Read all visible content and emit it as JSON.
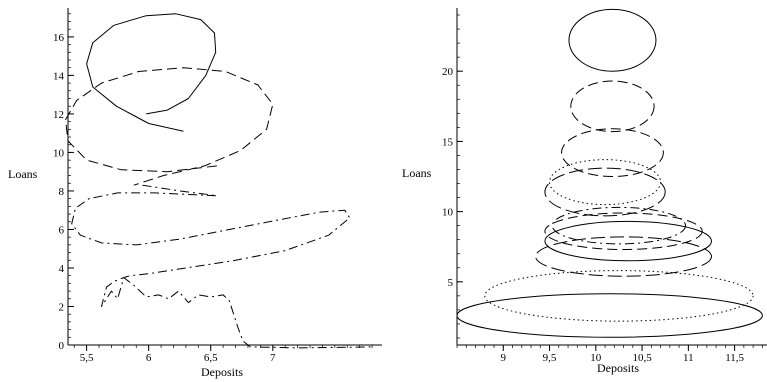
{
  "chart_data": [
    {
      "type": "line",
      "xlabel": "Deposits",
      "ylabel": "Loans",
      "xlim": [
        5.35,
        7.88
      ],
      "ylim": [
        0,
        17.5
      ],
      "xticks": [
        "5,5",
        "6",
        "6,5",
        "7"
      ],
      "xtick_values": [
        5.5,
        6,
        6.5,
        7
      ],
      "yticks": [
        "0",
        "2",
        "4",
        "6",
        "8",
        "10",
        "12",
        "14",
        "16"
      ],
      "ytick_values": [
        0,
        2,
        4,
        6,
        8,
        10,
        12,
        14,
        16
      ],
      "grid": false,
      "series": [
        {
          "style": "solid",
          "x": [
            6.28,
            6.0,
            5.74,
            5.55,
            5.5,
            5.55,
            5.72,
            5.98,
            6.22,
            6.42,
            6.53,
            6.54,
            6.46,
            6.32,
            6.15,
            5.98
          ],
          "y": [
            11.1,
            11.5,
            12.4,
            13.4,
            14.6,
            15.7,
            16.6,
            17.1,
            17.2,
            16.9,
            16.2,
            15.2,
            14.0,
            12.8,
            12.2,
            12.0
          ]
        },
        {
          "style": "dashed",
          "x": [
            6.55,
            6.15,
            5.78,
            5.5,
            5.35,
            5.33,
            5.42,
            5.62,
            5.92,
            6.28,
            6.62,
            6.88,
            7.0,
            6.95,
            6.74,
            6.45,
            6.12,
            5.88
          ],
          "y": [
            9.3,
            9.0,
            9.1,
            9.6,
            10.6,
            11.7,
            12.7,
            13.6,
            14.2,
            14.4,
            14.2,
            13.5,
            12.5,
            11.2,
            10.1,
            9.3,
            8.8,
            8.3
          ]
        },
        {
          "style": "dash-dot",
          "x": [
            5.95,
            6.25,
            6.5,
            6.55,
            6.38,
            6.05,
            5.75,
            5.52,
            5.41,
            5.38,
            5.45,
            5.62,
            5.9,
            6.25,
            6.65,
            7.05,
            7.38,
            7.58,
            7.62,
            7.45,
            7.1,
            6.7,
            6.3,
            6.0,
            5.85,
            5.8,
            5.76,
            5.72,
            5.66,
            5.62,
            5.7,
            5.75,
            5.8,
            5.88,
            5.98,
            6.08,
            6.16,
            6.24,
            6.32,
            6.4,
            6.5,
            6.6,
            6.65,
            6.72,
            6.76,
            6.82,
            7.2,
            7.8
          ],
          "y": [
            8.3,
            8.0,
            7.8,
            7.75,
            7.8,
            7.9,
            7.9,
            7.6,
            7.1,
            6.3,
            5.7,
            5.3,
            5.2,
            5.5,
            6.0,
            6.5,
            6.9,
            7.0,
            6.6,
            5.7,
            4.9,
            4.4,
            4.0,
            3.7,
            3.6,
            3.5,
            3.4,
            3.3,
            3.0,
            2.0,
            2.8,
            2.4,
            3.5,
            3.1,
            2.5,
            2.6,
            2.4,
            2.8,
            2.2,
            2.6,
            2.5,
            2.6,
            2.3,
            0.9,
            0.2,
            -0.1,
            -0.15,
            -0.1
          ]
        }
      ]
    },
    {
      "type": "line",
      "xlabel": "Deposits",
      "ylabel": "Loans",
      "xlim": [
        8.5,
        11.85
      ],
      "ylim": [
        0.5,
        24.5
      ],
      "xticks": [
        "9",
        "9,5",
        "10",
        "10,5",
        "11",
        "11,5"
      ],
      "xtick_values": [
        9,
        9.5,
        10,
        10.5,
        11,
        11.5
      ],
      "yticks": [
        "5",
        "10",
        "15",
        "20"
      ],
      "ytick_values": [
        5,
        10,
        15,
        20
      ],
      "grid": false,
      "series": [
        {
          "style": "solid",
          "shape": "ellipse",
          "cx": 10.18,
          "cy": 22.2,
          "rx": 0.47,
          "ry": 2.2
        },
        {
          "style": "dashed",
          "shape": "ellipse",
          "cx": 10.18,
          "cy": 17.5,
          "rx": 0.45,
          "ry": 1.8
        },
        {
          "style": "dashed",
          "shape": "ellipse",
          "cx": 10.18,
          "cy": 14.2,
          "rx": 0.55,
          "ry": 1.7
        },
        {
          "style": "dotted",
          "shape": "ellipse",
          "cx": 10.1,
          "cy": 12.1,
          "rx": 0.6,
          "ry": 1.6
        },
        {
          "style": "long-dash",
          "shape": "ellipse",
          "cx": 10.1,
          "cy": 11.4,
          "rx": 0.65,
          "ry": 1.7
        },
        {
          "style": "dash-dot",
          "shape": "ellipse",
          "cx": 10.25,
          "cy": 9.0,
          "rx": 0.72,
          "ry": 1.3
        },
        {
          "style": "dashed",
          "shape": "ellipse",
          "cx": 10.3,
          "cy": 8.6,
          "rx": 0.85,
          "ry": 1.3
        },
        {
          "style": "solid",
          "shape": "ellipse",
          "cx": 10.35,
          "cy": 7.9,
          "rx": 0.9,
          "ry": 1.4
        },
        {
          "style": "long-dash",
          "shape": "ellipse",
          "cx": 10.3,
          "cy": 6.8,
          "rx": 0.95,
          "ry": 1.4
        },
        {
          "style": "dotted",
          "shape": "ellipse",
          "cx": 10.25,
          "cy": 4.0,
          "rx": 1.45,
          "ry": 1.8
        },
        {
          "style": "solid",
          "shape": "ellipse",
          "cx": 10.15,
          "cy": 2.6,
          "rx": 1.65,
          "ry": 1.55
        }
      ]
    }
  ]
}
